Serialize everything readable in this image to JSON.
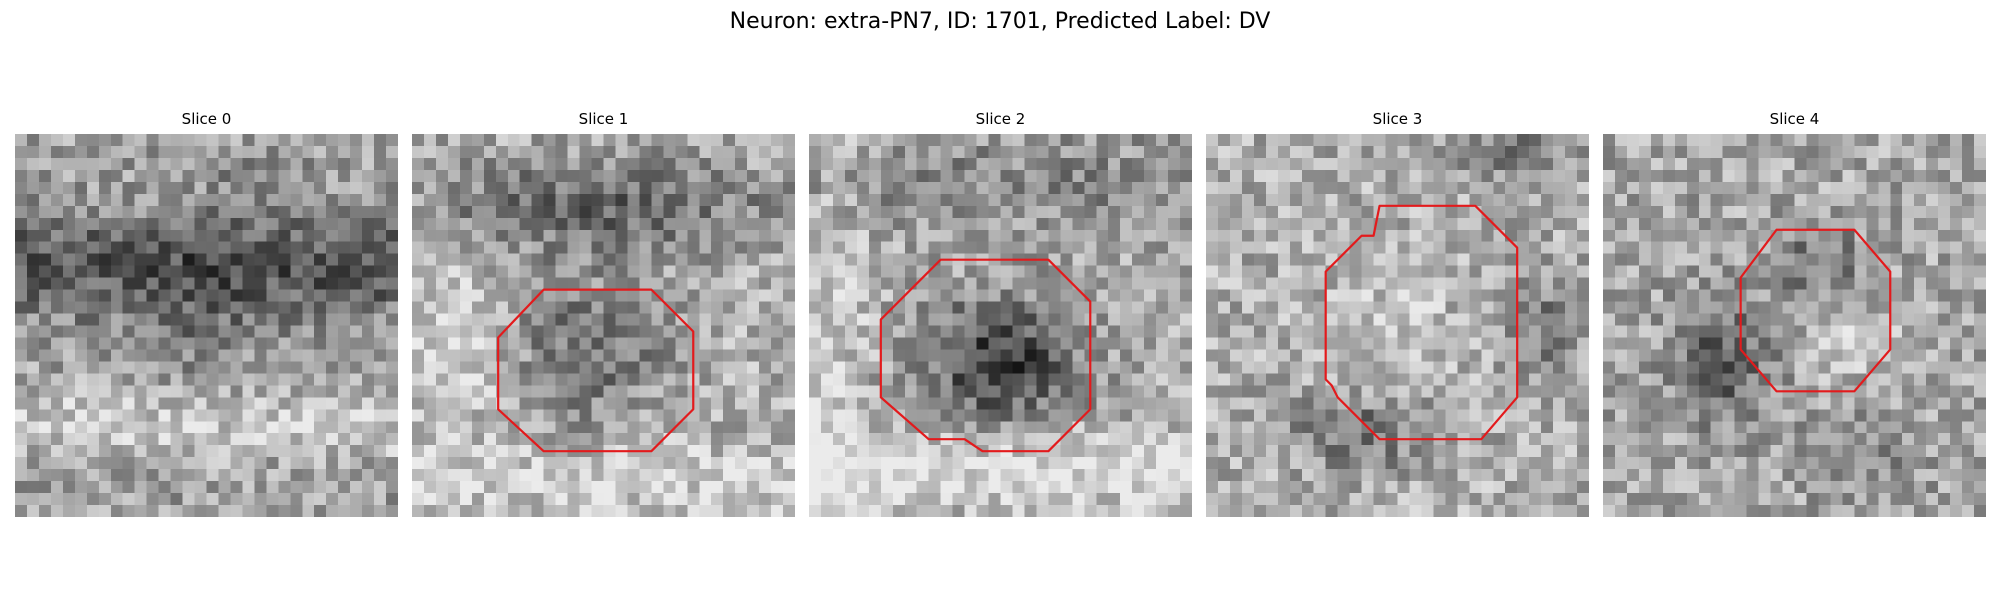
{
  "figure": {
    "title": "Neuron: extra-PN7, ID: 1701, Predicted Label: DV"
  },
  "colors": {
    "contour": "#e31a1c",
    "background": "#ffffff"
  },
  "panels": [
    {
      "title": "Slice 0",
      "image": "grayscale-em-patch-slice-0",
      "has_contour": false
    },
    {
      "title": "Slice 1",
      "image": "grayscale-em-patch-slice-1",
      "has_contour": true
    },
    {
      "title": "Slice 2",
      "image": "grayscale-em-patch-slice-2",
      "has_contour": true
    },
    {
      "title": "Slice 3",
      "image": "grayscale-em-patch-slice-3",
      "has_contour": true
    },
    {
      "title": "Slice 4",
      "image": "grayscale-em-patch-slice-4",
      "has_contour": true
    }
  ]
}
